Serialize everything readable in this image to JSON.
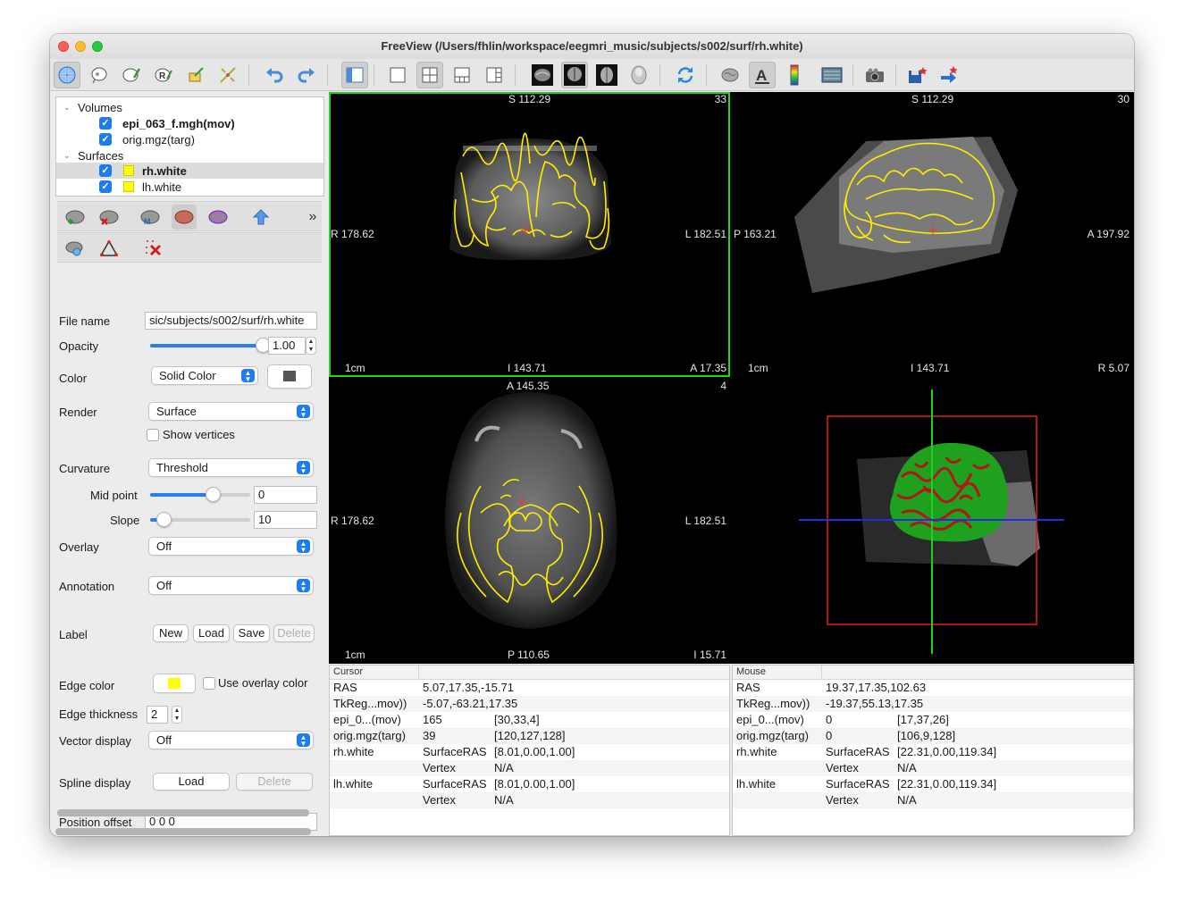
{
  "window": {
    "title": "FreeView (/Users/fhlin/workspace/eegmri_music/subjects/s002/surf/rh.white)"
  },
  "toolbar": {
    "icons": [
      "navigate-icon",
      "voxel-edit-icon",
      "recon-edit-icon",
      "roi-edit-icon",
      "point-set-edit-icon",
      "contour-icon",
      "undo-icon",
      "redo-icon",
      "toggle-panel-icon",
      "layout-1x1-icon",
      "layout-2x2-icon",
      "layout-1and3-icon",
      "layout-1and3-horizontal-icon",
      "sagittal-view-icon",
      "coronal-view-icon",
      "axial-view-icon",
      "3d-view-icon",
      "reset-view-icon",
      "show-surface-icon",
      "show-annotation-icon",
      "colorbar-icon",
      "show-coordinate-icon",
      "snapshot-icon",
      "save-point-icon",
      "goto-point-icon"
    ]
  },
  "layers": {
    "volumes_label": "Volumes",
    "volumes": [
      "epi_063_f.mgh(mov)",
      "orig.mgz(targ)"
    ],
    "surfaces_label": "Surfaces",
    "surfaces": [
      "rh.white",
      "lh.white"
    ],
    "surface_color": "#ffff00"
  },
  "props": {
    "file_name_label": "File name",
    "file_name_value": "sic/subjects/s002/surf/rh.white",
    "opacity_label": "Opacity",
    "opacity_value": "1.00",
    "opacity_level": 1.0,
    "color_label": "Color",
    "color_mode": "Solid Color",
    "render_label": "Render",
    "render_value": "Surface",
    "show_vertices": "Show vertices",
    "curvature_label": "Curvature",
    "curvature_value": "Threshold",
    "midpoint_label": "Mid point",
    "midpoint_value": "0",
    "slope_label": "Slope",
    "slope_value": "10",
    "overlay_label": "Overlay",
    "overlay_value": "Off",
    "annotation_label": "Annotation",
    "annotation_value": "Off",
    "label_label": "Label",
    "label_new": "New",
    "label_load": "Load",
    "label_save": "Save",
    "label_delete": "Delete",
    "edge_color_label": "Edge color",
    "use_overlay_color": "Use overlay color",
    "edge_thickness_label": "Edge thickness",
    "edge_thickness_value": "2",
    "vector_display_label": "Vector display",
    "vector_display_value": "Off",
    "spline_display_label": "Spline display",
    "spline_load": "Load",
    "spline_delete": "Delete",
    "position_offset_label": "Position offset",
    "position_offset_value": "0 0 0"
  },
  "views": {
    "coronal": {
      "top": "S 112.29",
      "slice": "33",
      "left": "R 178.62",
      "right": "L 182.51",
      "bottom": "I 143.71",
      "corner": "A 17.35",
      "scale": "1cm"
    },
    "sagittal": {
      "top": "S 112.29",
      "slice": "30",
      "left": "P 163.21",
      "right": "A 197.92",
      "bottom": "I 143.71",
      "corner": "R 5.07",
      "scale": "1cm"
    },
    "axial": {
      "top": "A 145.35",
      "slice": "4",
      "left": "R 178.62",
      "right": "L 182.51",
      "bottom": "P 110.65",
      "corner": "I 15.71",
      "scale": "1cm"
    }
  },
  "cursor_info": {
    "header": "Cursor",
    "rows": [
      [
        "RAS",
        "5.07,17.35,-15.71",
        ""
      ],
      [
        "TkReg...mov))",
        "-5.07,-63.21,17.35",
        ""
      ],
      [
        "epi_0...(mov)",
        "165",
        "[30,33,4]"
      ],
      [
        "orig.mgz(targ)",
        "39",
        "[120,127,128]"
      ],
      [
        "rh.white",
        "SurfaceRAS",
        "[8.01,0.00,1.00]"
      ],
      [
        "",
        "Vertex",
        "N/A"
      ],
      [
        "lh.white",
        "SurfaceRAS",
        "[8.01,0.00,1.00]"
      ],
      [
        "",
        "Vertex",
        "N/A"
      ]
    ]
  },
  "mouse_info": {
    "header": "Mouse",
    "rows": [
      [
        "RAS",
        "19.37,17.35,102.63",
        ""
      ],
      [
        "TkReg...mov))",
        "-19.37,55.13,17.35",
        ""
      ],
      [
        "epi_0...(mov)",
        "0",
        "[17,37,26]"
      ],
      [
        "orig.mgz(targ)",
        "0",
        "[106,9,128]"
      ],
      [
        "rh.white",
        "SurfaceRAS",
        "[22.31,0.00,119.34]"
      ],
      [
        "",
        "Vertex",
        "N/A"
      ],
      [
        "lh.white",
        "SurfaceRAS",
        "[22.31,0.00,119.34]"
      ],
      [
        "",
        "Vertex",
        "N/A"
      ]
    ]
  }
}
